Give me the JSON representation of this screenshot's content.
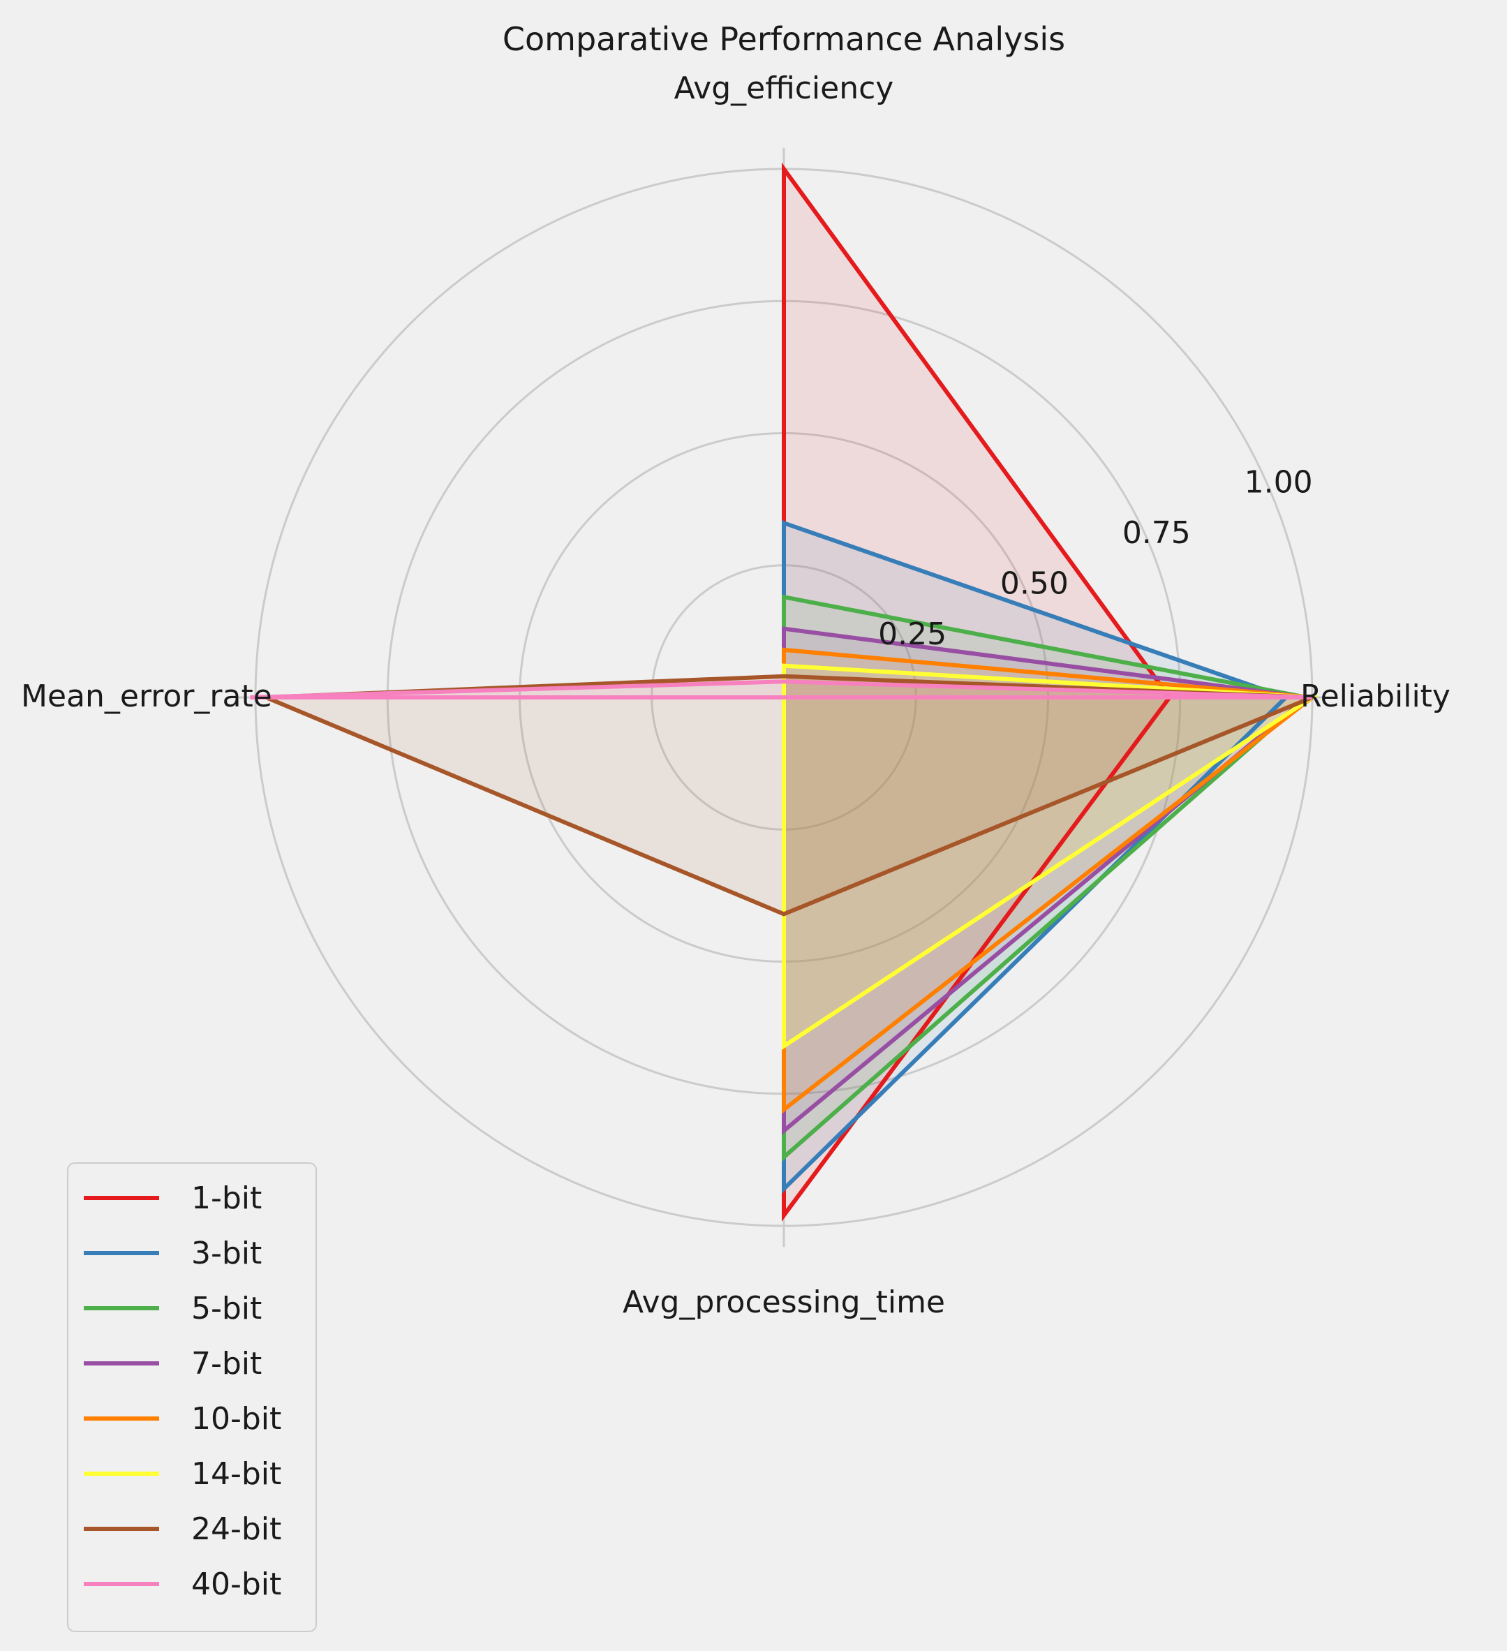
{
  "chart_data": {
    "type": "radar",
    "title": "Comparative Performance Analysis",
    "axes": [
      "Avg_efficiency",
      "Reliability",
      "Avg_processing_time",
      "Mean_error_rate"
    ],
    "radial_ticks": [
      0.25,
      0.5,
      0.75,
      1.0
    ],
    "radial_tick_labels": [
      "0.25",
      "0.50",
      "0.75",
      "1.00"
    ],
    "rlim": [
      0,
      1
    ],
    "grid": true,
    "legend_position": "lower-left",
    "series": [
      {
        "name": "1-bit",
        "color": "#e41a1c",
        "values": [
          1.0,
          0.73,
          0.98,
          0.0
        ]
      },
      {
        "name": "3-bit",
        "color": "#377eb8",
        "values": [
          0.33,
          0.95,
          0.93,
          0.0
        ]
      },
      {
        "name": "5-bit",
        "color": "#4daf4a",
        "values": [
          0.19,
          0.99,
          0.87,
          0.0
        ]
      },
      {
        "name": "7-bit",
        "color": "#984ea3",
        "values": [
          0.13,
          0.99,
          0.82,
          0.0
        ]
      },
      {
        "name": "10-bit",
        "color": "#ff7f00",
        "values": [
          0.09,
          1.0,
          0.78,
          0.0
        ]
      },
      {
        "name": "14-bit",
        "color": "#ffff33",
        "values": [
          0.06,
          1.0,
          0.66,
          0.0
        ]
      },
      {
        "name": "24-bit",
        "color": "#a65628",
        "values": [
          0.04,
          1.0,
          0.41,
          0.98
        ]
      },
      {
        "name": "40-bit",
        "color": "#f781bf",
        "values": [
          0.03,
          1.0,
          0.0,
          1.01
        ]
      }
    ]
  }
}
